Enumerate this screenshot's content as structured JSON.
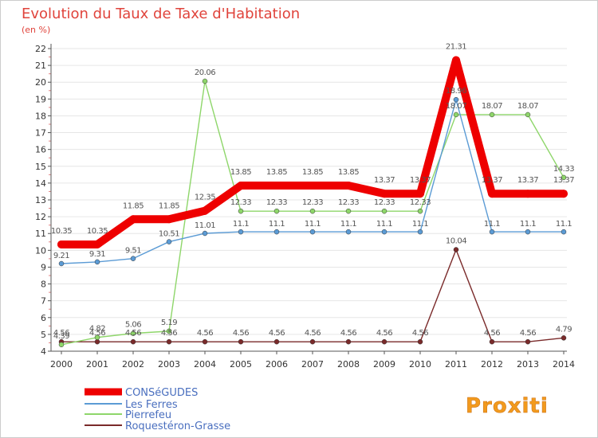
{
  "title": "Evolution du Taux de Taxe d'Habitation",
  "unit": "(en %)",
  "logo_text": "Proxiti",
  "chart_data": {
    "type": "line",
    "title": "Evolution du Taux de Taxe d'Habitation",
    "ylabel": "(en %)",
    "xlabel": "",
    "ylim": [
      4,
      22
    ],
    "yticks": [
      4,
      5,
      6,
      7,
      8,
      9,
      10,
      11,
      12,
      13,
      14,
      15,
      16,
      17,
      18,
      19,
      20,
      21,
      22
    ],
    "x": [
      2000,
      2001,
      2002,
      2003,
      2004,
      2005,
      2006,
      2007,
      2008,
      2009,
      2010,
      2011,
      2012,
      2013,
      2014
    ],
    "grid": true,
    "legend_position": "bottom-left",
    "series": [
      {
        "name": "CONSéGUDES",
        "color": "#ee0000",
        "values": [
          10.35,
          10.35,
          11.85,
          11.85,
          12.35,
          13.85,
          13.85,
          13.85,
          13.85,
          13.37,
          13.37,
          21.31,
          13.37,
          13.37,
          13.37
        ]
      },
      {
        "name": "Les Ferres",
        "color": "#5b9bd5",
        "values": [
          9.21,
          9.31,
          9.51,
          10.51,
          11.01,
          11.1,
          11.1,
          11.1,
          11.1,
          11.1,
          11.1,
          18.96,
          11.1,
          11.1,
          11.1
        ]
      },
      {
        "name": "Pierrefeu",
        "color": "#8ed66a",
        "values": [
          4.39,
          4.82,
          5.06,
          5.19,
          20.06,
          12.33,
          12.33,
          12.33,
          12.33,
          12.33,
          12.33,
          18.07,
          18.07,
          18.07,
          14.33
        ]
      },
      {
        "name": "Roquestéron-Grasse",
        "color": "#7a2a2a",
        "values": [
          4.56,
          4.56,
          4.56,
          4.56,
          4.56,
          4.56,
          4.56,
          4.56,
          4.56,
          4.56,
          4.56,
          10.04,
          4.56,
          4.56,
          4.79
        ]
      }
    ]
  }
}
